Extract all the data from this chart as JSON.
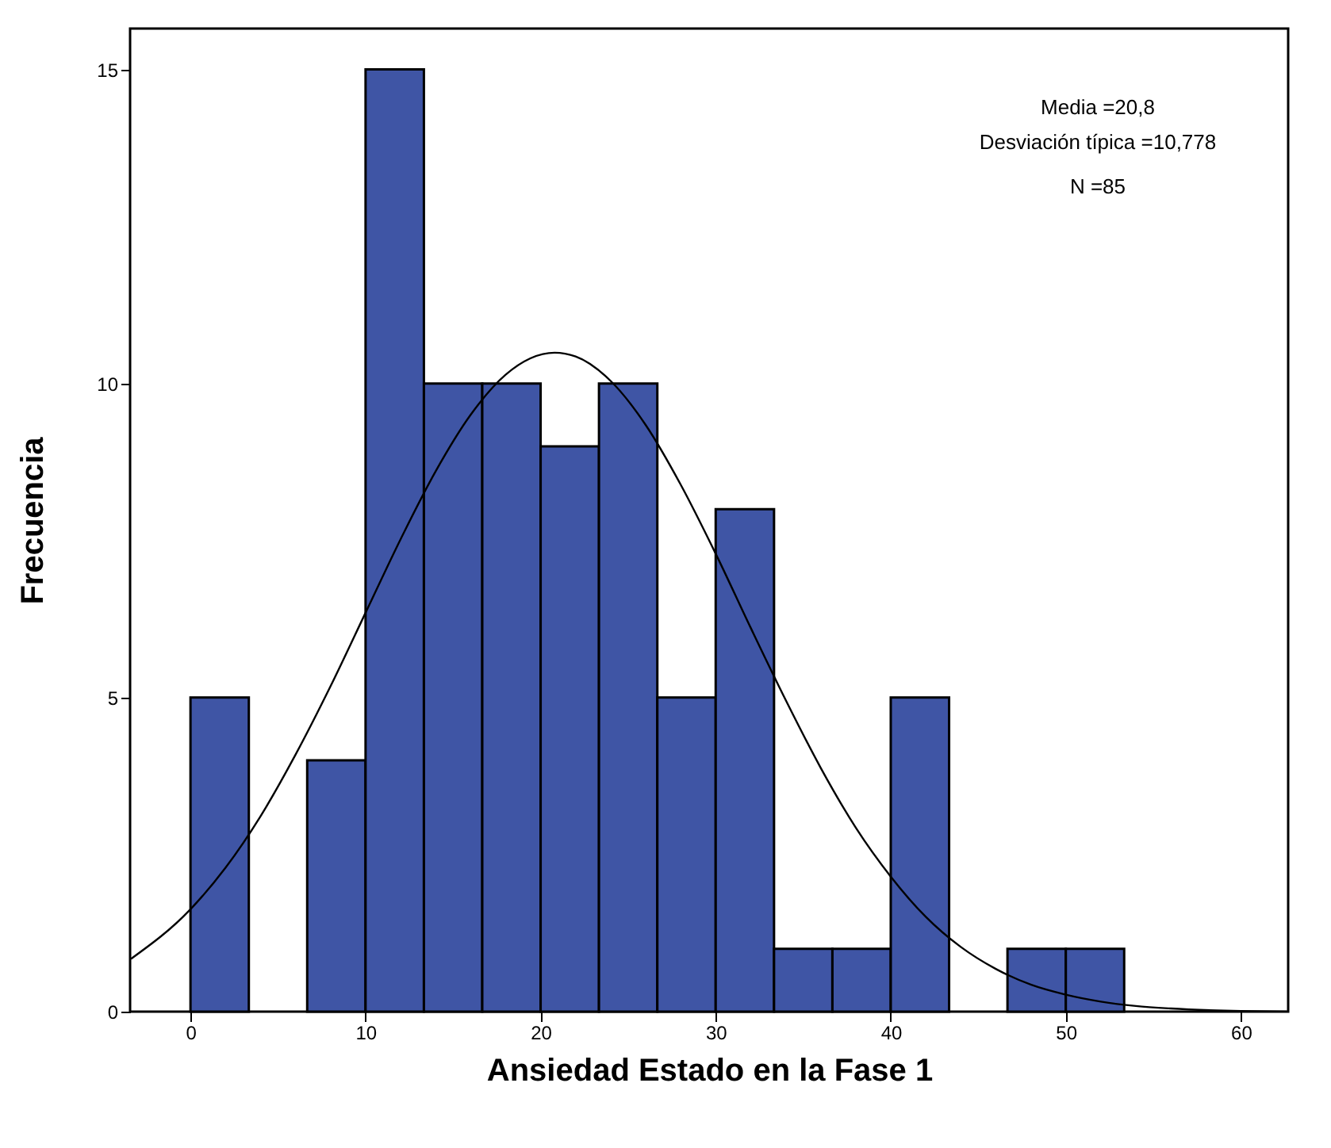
{
  "chart_data": {
    "type": "histogram",
    "xlabel": "Ansiedad Estado en la Fase 1",
    "ylabel": "Frecuencia",
    "bins": [
      0,
      3.333,
      6.667,
      10,
      13.333,
      16.667,
      20,
      23.333,
      26.667,
      30,
      33.333,
      36.667,
      40,
      43.333,
      46.667,
      50,
      53.333
    ],
    "values": [
      5,
      0,
      4,
      15,
      10,
      10,
      9,
      10,
      5,
      8,
      1,
      1,
      5,
      0,
      1,
      1
    ],
    "color": "#3f55a5",
    "series": [
      {
        "type": "line",
        "color": "#000000",
        "x": [
          -3.4,
          0,
          2,
          4,
          6,
          8,
          10,
          12,
          14,
          16,
          18,
          20.8,
          22,
          24,
          26,
          28,
          30,
          32,
          34,
          36,
          38,
          40,
          42,
          44,
          46,
          48,
          50,
          52,
          54,
          56,
          60,
          62.6
        ],
        "values": [
          0.84,
          1.63,
          2.29,
          3.11,
          4.09,
          5.18,
          6.35,
          7.52,
          8.6,
          9.5,
          10.14,
          10.49,
          10.43,
          10.04,
          9.34,
          8.39,
          7.29,
          6.11,
          4.96,
          3.88,
          2.93,
          2.15,
          1.51,
          1.03,
          0.68,
          0.43,
          0.27,
          0.16,
          0.09,
          0.05,
          0.01,
          0
        ]
      }
    ],
    "xlim": [
      -3.45,
      62.7
    ],
    "ylim": [
      0,
      15.65
    ],
    "xticks": [
      0,
      10,
      20,
      30,
      40,
      50,
      60
    ],
    "yticks": [
      0,
      5,
      10,
      15
    ],
    "grid": false,
    "annotations": [
      "Media =20,8",
      "Desviación típica =10,778",
      "N =85"
    ]
  }
}
